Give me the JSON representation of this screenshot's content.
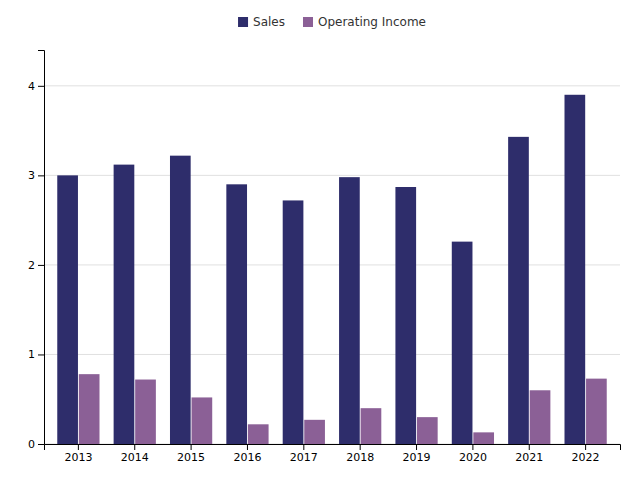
{
  "chart_data": {
    "type": "bar",
    "categories": [
      "2013",
      "2014",
      "2015",
      "2016",
      "2017",
      "2018",
      "2019",
      "2020",
      "2021",
      "2022"
    ],
    "series": [
      {
        "name": "Sales",
        "color": "#2E2D6B",
        "values": [
          3.0,
          3.12,
          3.22,
          2.9,
          2.72,
          2.98,
          2.87,
          2.26,
          3.43,
          3.9
        ]
      },
      {
        "name": "Operating Income",
        "color": "#8B6096",
        "values": [
          0.78,
          0.72,
          0.52,
          0.22,
          0.27,
          0.4,
          0.3,
          0.13,
          0.6,
          0.73
        ]
      }
    ],
    "ylim": [
      0,
      4.4
    ],
    "yticks": [
      0,
      1,
      2,
      3,
      4
    ],
    "grid": true,
    "legend": "top"
  }
}
